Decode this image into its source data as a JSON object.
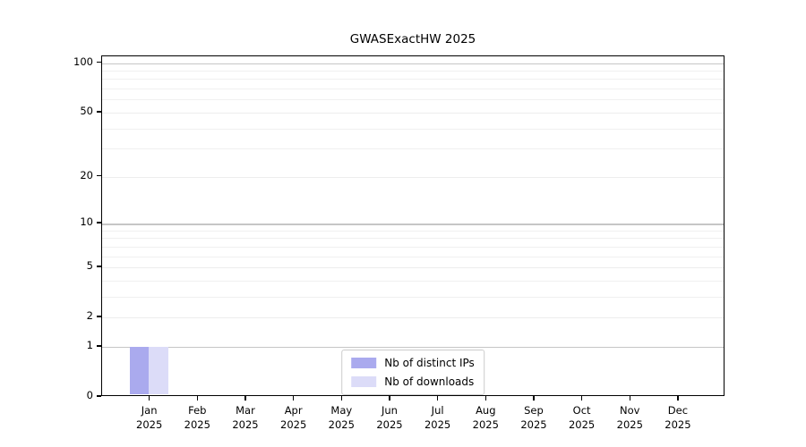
{
  "chart_data": {
    "type": "bar",
    "title": "GWASExactHW 2025",
    "categories": [
      "Jan",
      "Feb",
      "Mar",
      "Apr",
      "May",
      "Jun",
      "Jul",
      "Aug",
      "Sep",
      "Oct",
      "Nov",
      "Dec"
    ],
    "category_year": "2025",
    "series": [
      {
        "name": "Nb of distinct IPs",
        "color": "#aaaaee",
        "values": [
          1,
          0,
          0,
          0,
          0,
          0,
          0,
          0,
          0,
          0,
          0,
          0
        ]
      },
      {
        "name": "Nb of downloads",
        "color": "#dcdcf8",
        "values": [
          1,
          0,
          0,
          0,
          0,
          0,
          0,
          0,
          0,
          0,
          0,
          0
        ]
      }
    ],
    "y_axis": {
      "scale": "log1p",
      "min": 0,
      "max": 110,
      "major_ticks": [
        0,
        1,
        2,
        5,
        10,
        20,
        50,
        100
      ],
      "minor_gridlines": [
        3,
        4,
        6,
        7,
        8,
        9,
        30,
        40,
        60,
        70,
        80,
        90
      ],
      "emphasized_gridlines": [
        1,
        10,
        100
      ]
    },
    "x_axis": {
      "tick_label_lines": 2
    },
    "legend": {
      "position": "bottom-center",
      "border_color": "#cccccc"
    },
    "grid": "horizontal",
    "colors": {
      "grid_major": "#c6c6c6",
      "grid_minor": "#f0f0f0",
      "grid_plain": "#ededed",
      "axis": "#000000"
    }
  }
}
